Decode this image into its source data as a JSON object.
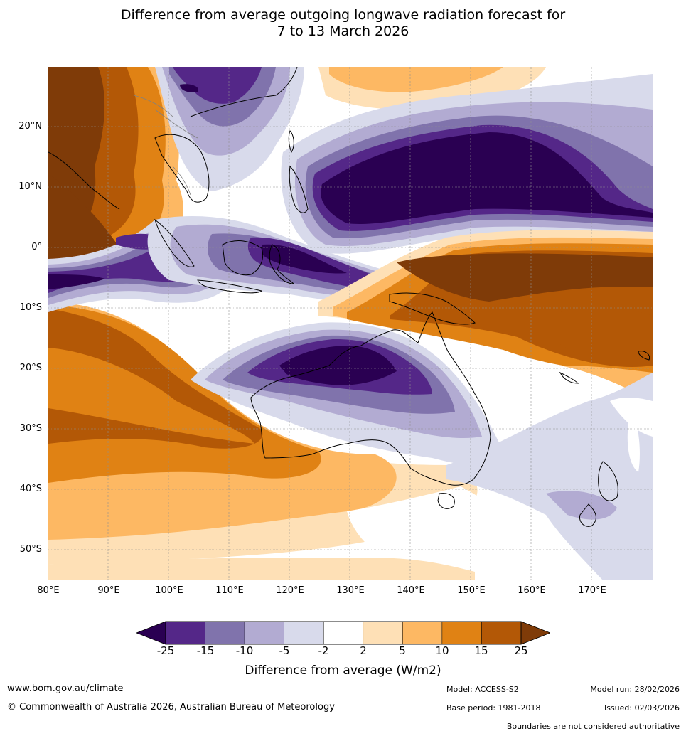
{
  "title": {
    "line1": "Difference from average outgoing longwave radiation forecast for",
    "line2": "7 to 13 March 2026"
  },
  "map": {
    "lat_labels": [
      "20°N",
      "10°N",
      "0°",
      "10°S",
      "20°S",
      "30°S",
      "40°S",
      "50°S"
    ],
    "lon_labels": [
      "80°E",
      "90°E",
      "100°E",
      "110°E",
      "120°E",
      "130°E",
      "140°E",
      "150°E",
      "160°E",
      "170°E"
    ],
    "colors": {
      "lt_neg25": "#2a0052",
      "neg25_neg15": "#542788",
      "neg15_neg10": "#8073ac",
      "neg10_neg5": "#b2abd2",
      "neg5_neg2": "#d8daeb",
      "neg2_2": "#ffffff",
      "p2_5": "#fee0b6",
      "p5_10": "#fdb863",
      "p10_15": "#e08214",
      "p15_25": "#b35806",
      "gt_25": "#7f3b08",
      "coast": "#000000",
      "borders": "#808080",
      "grid": "#909090"
    }
  },
  "colorbar": {
    "ticks": [
      "-25",
      "-15",
      "-10",
      "-5",
      "-2",
      "2",
      "5",
      "10",
      "15",
      "25"
    ],
    "colors": [
      "#542788",
      "#8073ac",
      "#b2abd2",
      "#d8daeb",
      "#ffffff",
      "#fee0b6",
      "#fdb863",
      "#e08214",
      "#b35806"
    ],
    "under_color": "#2a0052",
    "over_color": "#7f3b08",
    "label": "Difference from average (W/m2)"
  },
  "footer": {
    "website": "www.bom.gov.au/climate",
    "copyright": "© Commonwealth of Australia 2026, Australian Bureau of Meteorology",
    "model": "Model: ACCESS-S2",
    "base_period": "Base period: 1981-2018",
    "model_run": "Model run: 28/02/2026",
    "issued": "Issued: 02/03/2026",
    "disclaimer": "Boundaries are not considered authoritative"
  }
}
